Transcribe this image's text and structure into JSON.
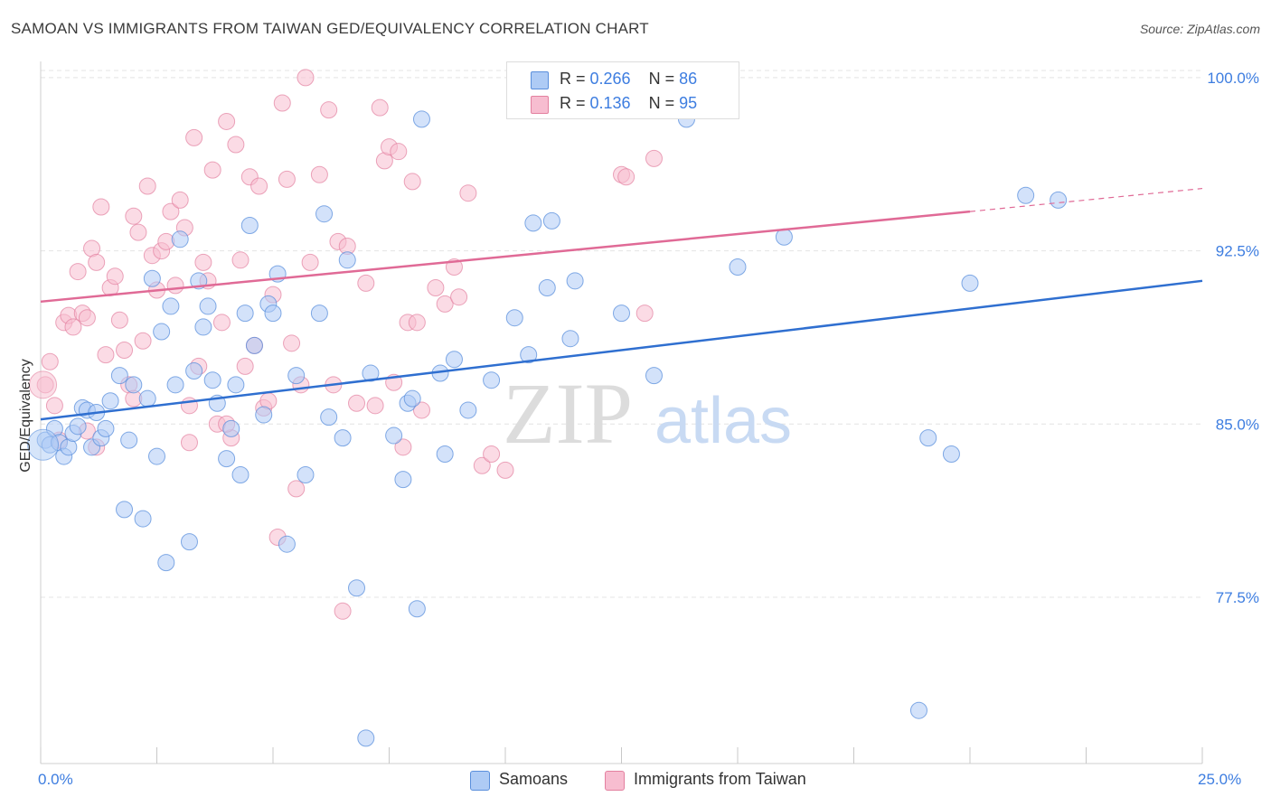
{
  "title": "SAMOAN VS IMMIGRANTS FROM TAIWAN GED/EQUIVALENCY CORRELATION CHART",
  "source": "Source: ZipAtlas.com",
  "watermark": {
    "zip": "ZIP",
    "atlas": "atlas"
  },
  "legend": {
    "series1": {
      "r_label": "R = ",
      "r_value": "0.266",
      "n_label": "N = ",
      "n_value": "86"
    },
    "series2": {
      "r_label": "R = ",
      "r_value": "0.136",
      "n_label": "N = ",
      "n_value": "95"
    }
  },
  "bottom_legend": {
    "series1": "Samoans",
    "series2": "Immigrants from Taiwan"
  },
  "colors": {
    "blue_fill": "#aecbf5",
    "blue_stroke": "#5a8fdc",
    "blue_line": "#2f6fd0",
    "pink_fill": "#f7bdd0",
    "pink_stroke": "#e3809f",
    "pink_line": "#e06a96",
    "tick_text": "#3d7de0",
    "grid": "#e4e4e4"
  },
  "chart_data": {
    "type": "scatter",
    "title": "SAMOAN VS IMMIGRANTS FROM TAIWAN GED/EQUIVALENCY CORRELATION CHART",
    "xlabel": "",
    "ylabel": "GED/Equivalency",
    "xlim": [
      0,
      25
    ],
    "ylim": [
      70.3,
      100.7
    ],
    "x_tick_labels": [
      "0.0%",
      "25.0%"
    ],
    "y_ticks": [
      77.5,
      85.0,
      92.5,
      100.0
    ],
    "y_tick_labels": [
      "77.5%",
      "85.0%",
      "92.5%",
      "100.0%"
    ],
    "grid": true,
    "legend_position": "top-center",
    "series": [
      {
        "name": "Samoans",
        "r": 0.266,
        "n": 86,
        "trend": {
          "x": [
            0,
            25
          ],
          "y": [
            85.2,
            91.2
          ]
        },
        "points": [
          [
            0.1,
            84.3
          ],
          [
            0.2,
            84.1
          ],
          [
            0.3,
            84.8
          ],
          [
            0.4,
            84.2
          ],
          [
            0.5,
            83.6
          ],
          [
            0.6,
            84.0
          ],
          [
            0.7,
            84.6
          ],
          [
            0.8,
            84.9
          ],
          [
            0.9,
            85.7
          ],
          [
            1.0,
            85.6
          ],
          [
            1.1,
            84.0
          ],
          [
            1.2,
            85.5
          ],
          [
            1.3,
            84.4
          ],
          [
            1.4,
            84.8
          ],
          [
            1.5,
            86.0
          ],
          [
            1.7,
            87.1
          ],
          [
            1.8,
            81.3
          ],
          [
            1.9,
            84.3
          ],
          [
            2.0,
            86.7
          ],
          [
            2.2,
            80.9
          ],
          [
            2.3,
            86.1
          ],
          [
            2.4,
            91.3
          ],
          [
            2.5,
            83.6
          ],
          [
            2.6,
            89.0
          ],
          [
            2.7,
            79.0
          ],
          [
            2.8,
            90.1
          ],
          [
            2.9,
            86.7
          ],
          [
            3.0,
            93.0
          ],
          [
            3.2,
            79.9
          ],
          [
            3.3,
            87.3
          ],
          [
            3.4,
            91.2
          ],
          [
            3.5,
            89.2
          ],
          [
            3.6,
            90.1
          ],
          [
            3.7,
            86.9
          ],
          [
            3.8,
            85.9
          ],
          [
            4.0,
            83.5
          ],
          [
            4.1,
            84.8
          ],
          [
            4.2,
            86.7
          ],
          [
            4.3,
            82.8
          ],
          [
            4.4,
            89.8
          ],
          [
            4.5,
            93.6
          ],
          [
            4.6,
            88.4
          ],
          [
            4.8,
            85.4
          ],
          [
            4.9,
            90.2
          ],
          [
            5.0,
            89.8
          ],
          [
            5.1,
            91.5
          ],
          [
            5.3,
            79.8
          ],
          [
            5.5,
            87.1
          ],
          [
            5.7,
            82.8
          ],
          [
            6.0,
            89.8
          ],
          [
            6.1,
            94.1
          ],
          [
            6.2,
            85.3
          ],
          [
            6.5,
            84.4
          ],
          [
            6.6,
            92.1
          ],
          [
            6.8,
            77.9
          ],
          [
            7.0,
            71.4
          ],
          [
            7.1,
            87.2
          ],
          [
            7.6,
            84.5
          ],
          [
            7.8,
            82.6
          ],
          [
            7.9,
            85.9
          ],
          [
            8.0,
            86.1
          ],
          [
            8.1,
            77.0
          ],
          [
            8.2,
            98.2
          ],
          [
            8.6,
            87.2
          ],
          [
            8.7,
            83.7
          ],
          [
            8.9,
            87.8
          ],
          [
            9.2,
            85.6
          ],
          [
            9.7,
            86.9
          ],
          [
            10.2,
            89.6
          ],
          [
            10.5,
            88.0
          ],
          [
            10.6,
            93.7
          ],
          [
            10.9,
            90.9
          ],
          [
            11.0,
            93.8
          ],
          [
            11.4,
            88.7
          ],
          [
            11.5,
            91.2
          ],
          [
            12.5,
            89.8
          ],
          [
            13.2,
            87.1
          ],
          [
            13.9,
            98.2
          ],
          [
            15.0,
            91.8
          ],
          [
            16.0,
            93.1
          ],
          [
            18.9,
            72.6
          ],
          [
            19.1,
            84.4
          ],
          [
            19.6,
            83.7
          ],
          [
            20.0,
            91.1
          ],
          [
            21.2,
            94.9
          ],
          [
            21.9,
            94.7
          ]
        ]
      },
      {
        "name": "Immigrants from Taiwan",
        "r": 0.136,
        "n": 95,
        "trend": {
          "x": [
            0,
            20
          ],
          "y": [
            90.3,
            94.2
          ]
        },
        "trend_extension": {
          "x": [
            20,
            25
          ],
          "y": [
            94.2,
            95.2
          ]
        },
        "points": [
          [
            0.1,
            86.7
          ],
          [
            0.2,
            87.7
          ],
          [
            0.3,
            85.8
          ],
          [
            0.4,
            84.3
          ],
          [
            0.5,
            89.4
          ],
          [
            0.6,
            89.7
          ],
          [
            0.7,
            89.2
          ],
          [
            0.8,
            91.6
          ],
          [
            0.9,
            89.8
          ],
          [
            1.0,
            89.6
          ],
          [
            1.1,
            92.6
          ],
          [
            1.2,
            92.0
          ],
          [
            1.3,
            94.4
          ],
          [
            1.4,
            88.0
          ],
          [
            1.5,
            90.9
          ],
          [
            1.6,
            91.4
          ],
          [
            1.7,
            89.5
          ],
          [
            1.8,
            88.2
          ],
          [
            1.9,
            86.7
          ],
          [
            2.0,
            94.0
          ],
          [
            2.1,
            93.3
          ],
          [
            2.2,
            88.6
          ],
          [
            2.3,
            95.3
          ],
          [
            2.4,
            92.3
          ],
          [
            2.5,
            90.8
          ],
          [
            2.6,
            92.5
          ],
          [
            2.7,
            92.9
          ],
          [
            2.8,
            94.2
          ],
          [
            2.9,
            91.0
          ],
          [
            3.0,
            94.7
          ],
          [
            3.1,
            93.5
          ],
          [
            3.2,
            85.8
          ],
          [
            3.3,
            97.4
          ],
          [
            3.4,
            87.5
          ],
          [
            3.5,
            92.0
          ],
          [
            3.6,
            91.2
          ],
          [
            3.7,
            96.0
          ],
          [
            3.8,
            85.0
          ],
          [
            3.9,
            89.4
          ],
          [
            4.0,
            98.1
          ],
          [
            4.1,
            84.4
          ],
          [
            4.2,
            97.1
          ],
          [
            4.3,
            92.1
          ],
          [
            4.4,
            87.5
          ],
          [
            4.5,
            95.7
          ],
          [
            4.6,
            88.4
          ],
          [
            4.7,
            95.3
          ],
          [
            4.8,
            85.7
          ],
          [
            4.9,
            86.0
          ],
          [
            5.0,
            90.6
          ],
          [
            5.1,
            80.1
          ],
          [
            5.2,
            98.9
          ],
          [
            5.3,
            95.6
          ],
          [
            5.4,
            88.5
          ],
          [
            5.5,
            82.2
          ],
          [
            5.6,
            86.7
          ],
          [
            5.7,
            100.0
          ],
          [
            5.8,
            92.0
          ],
          [
            6.0,
            95.8
          ],
          [
            6.2,
            98.6
          ],
          [
            6.3,
            86.7
          ],
          [
            6.4,
            92.9
          ],
          [
            6.5,
            76.9
          ],
          [
            6.6,
            92.7
          ],
          [
            6.8,
            85.9
          ],
          [
            7.0,
            91.1
          ],
          [
            7.2,
            85.8
          ],
          [
            7.3,
            98.7
          ],
          [
            7.4,
            96.4
          ],
          [
            7.5,
            97.0
          ],
          [
            7.6,
            86.8
          ],
          [
            7.7,
            96.8
          ],
          [
            7.8,
            84.0
          ],
          [
            7.9,
            89.4
          ],
          [
            8.0,
            95.5
          ],
          [
            8.1,
            89.4
          ],
          [
            8.2,
            85.6
          ],
          [
            8.5,
            90.9
          ],
          [
            8.7,
            90.2
          ],
          [
            8.9,
            91.8
          ],
          [
            9.0,
            90.5
          ],
          [
            9.2,
            95.0
          ],
          [
            9.5,
            83.2
          ],
          [
            9.7,
            83.7
          ],
          [
            10.0,
            83.0
          ],
          [
            11.6,
            99.8
          ],
          [
            12.5,
            95.8
          ],
          [
            12.6,
            95.7
          ],
          [
            13.0,
            89.8
          ],
          [
            13.2,
            96.5
          ],
          [
            1.0,
            84.7
          ],
          [
            1.2,
            84.0
          ],
          [
            2.0,
            86.1
          ],
          [
            3.2,
            84.2
          ],
          [
            4.0,
            85.0
          ]
        ]
      }
    ]
  }
}
